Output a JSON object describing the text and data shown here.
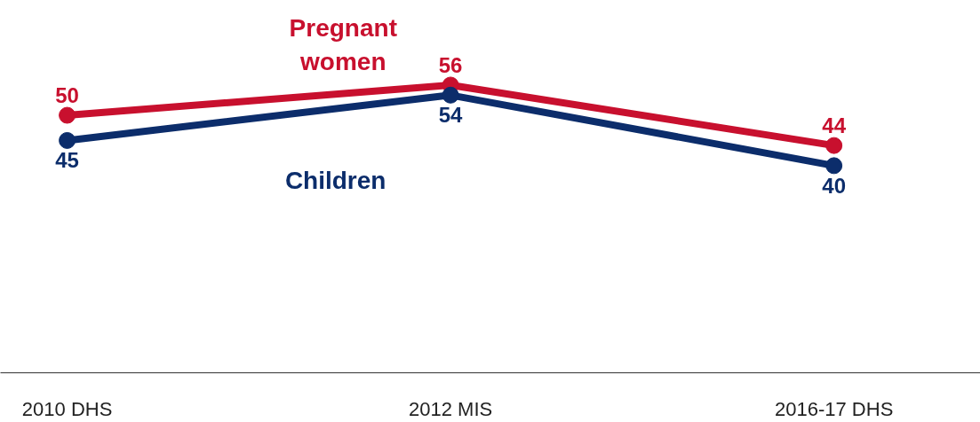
{
  "chart_data": {
    "type": "line",
    "categories": [
      "2010 DHS",
      "2012 MIS",
      "2016-17 DHS"
    ],
    "series": [
      {
        "name": "Pregnant\nwomen",
        "color": "#c8102e",
        "values": [
          50,
          56,
          44
        ]
      },
      {
        "name": "Children",
        "color": "#0c2d6b",
        "values": [
          45,
          54,
          40
        ]
      }
    ],
    "data_labels": true,
    "grid": false,
    "marker": "circle",
    "line_style": "solid",
    "tick_labels": "x"
  }
}
